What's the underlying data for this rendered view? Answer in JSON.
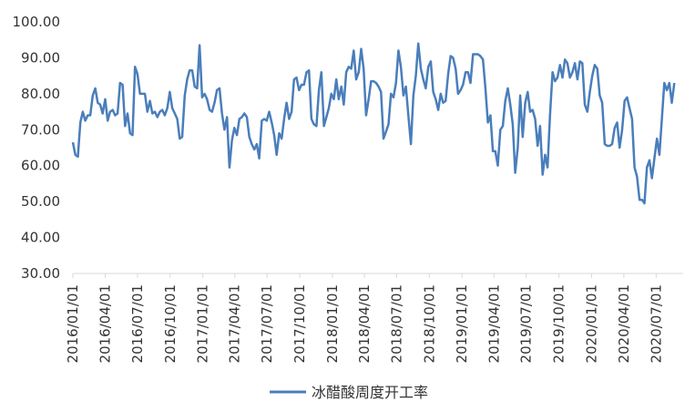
{
  "chart_data": {
    "type": "line",
    "title": "",
    "xlabel": "",
    "ylabel": "",
    "ylim": [
      30,
      100
    ],
    "y_ticks": [
      "30.00",
      "40.00",
      "50.00",
      "60.00",
      "70.00",
      "80.00",
      "90.00",
      "100.00"
    ],
    "x_ticks": [
      "2016/01/01",
      "2016/04/01",
      "2016/07/01",
      "2016/10/01",
      "2017/01/01",
      "2017/04/01",
      "2017/07/01",
      "2017/10/01",
      "2018/01/01",
      "2018/04/01",
      "2018/07/01",
      "2018/10/01",
      "2019/01/01",
      "2019/04/01",
      "2019/07/01",
      "2019/10/01",
      "2020/01/01",
      "2020/04/01",
      "2020/07/01"
    ],
    "x_range": [
      "2016/01/01",
      "2020/09/15"
    ],
    "grid": false,
    "legend_position": "bottom",
    "series": [
      {
        "name": "冰醋酸周度开工率",
        "color": "#4a7ebb",
        "points": [
          [
            "2016-01-01",
            66.5
          ],
          [
            "2016-01-08",
            63.0
          ],
          [
            "2016-01-15",
            62.5
          ],
          [
            "2016-01-22",
            72.0
          ],
          [
            "2016-01-29",
            75.0
          ],
          [
            "2016-02-05",
            72.5
          ],
          [
            "2016-02-12",
            74.0
          ],
          [
            "2016-02-19",
            74.0
          ],
          [
            "2016-02-26",
            79.5
          ],
          [
            "2016-03-04",
            81.5
          ],
          [
            "2016-03-11",
            77.5
          ],
          [
            "2016-03-18",
            77.0
          ],
          [
            "2016-03-25",
            74.5
          ],
          [
            "2016-04-01",
            78.5
          ],
          [
            "2016-04-08",
            72.5
          ],
          [
            "2016-04-15",
            75.0
          ],
          [
            "2016-04-22",
            75.5
          ],
          [
            "2016-04-29",
            74.0
          ],
          [
            "2016-05-06",
            74.5
          ],
          [
            "2016-05-13",
            83.0
          ],
          [
            "2016-05-20",
            82.5
          ],
          [
            "2016-05-27",
            71.0
          ],
          [
            "2016-06-03",
            74.5
          ],
          [
            "2016-06-10",
            69.0
          ],
          [
            "2016-06-17",
            68.5
          ],
          [
            "2016-06-24",
            87.5
          ],
          [
            "2016-07-01",
            85.5
          ],
          [
            "2016-07-08",
            80.0
          ],
          [
            "2016-07-15",
            80.0
          ],
          [
            "2016-07-22",
            80.0
          ],
          [
            "2016-07-29",
            75.0
          ],
          [
            "2016-08-05",
            78.0
          ],
          [
            "2016-08-12",
            74.5
          ],
          [
            "2016-08-19",
            75.0
          ],
          [
            "2016-08-26",
            73.5
          ],
          [
            "2016-09-02",
            75.0
          ],
          [
            "2016-09-09",
            75.5
          ],
          [
            "2016-09-16",
            74.0
          ],
          [
            "2016-09-23",
            76.0
          ],
          [
            "2016-09-30",
            80.5
          ],
          [
            "2016-10-07",
            76.0
          ],
          [
            "2016-10-14",
            74.5
          ],
          [
            "2016-10-21",
            73.0
          ],
          [
            "2016-10-28",
            67.5
          ],
          [
            "2016-11-04",
            68.0
          ],
          [
            "2016-11-11",
            79.5
          ],
          [
            "2016-11-18",
            84.0
          ],
          [
            "2016-11-25",
            86.5
          ],
          [
            "2016-12-02",
            86.5
          ],
          [
            "2016-12-09",
            82.0
          ],
          [
            "2016-12-16",
            81.5
          ],
          [
            "2016-12-23",
            93.5
          ],
          [
            "2016-12-30",
            79.0
          ],
          [
            "2017-01-06",
            80.0
          ],
          [
            "2017-01-13",
            78.5
          ],
          [
            "2017-01-20",
            75.5
          ],
          [
            "2017-01-27",
            75.0
          ],
          [
            "2017-02-03",
            77.5
          ],
          [
            "2017-02-10",
            81.0
          ],
          [
            "2017-02-17",
            81.5
          ],
          [
            "2017-02-24",
            74.5
          ],
          [
            "2017-03-03",
            70.0
          ],
          [
            "2017-03-10",
            73.5
          ],
          [
            "2017-03-17",
            59.5
          ],
          [
            "2017-03-24",
            67.0
          ],
          [
            "2017-03-31",
            70.5
          ],
          [
            "2017-04-07",
            68.5
          ],
          [
            "2017-04-14",
            73.0
          ],
          [
            "2017-04-21",
            73.5
          ],
          [
            "2017-04-28",
            74.5
          ],
          [
            "2017-05-05",
            73.5
          ],
          [
            "2017-05-12",
            68.0
          ],
          [
            "2017-05-19",
            66.0
          ],
          [
            "2017-05-26",
            64.5
          ],
          [
            "2017-06-02",
            66.0
          ],
          [
            "2017-06-09",
            62.0
          ],
          [
            "2017-06-16",
            72.5
          ],
          [
            "2017-06-23",
            73.0
          ],
          [
            "2017-06-30",
            72.5
          ],
          [
            "2017-07-07",
            75.0
          ],
          [
            "2017-07-14",
            72.0
          ],
          [
            "2017-07-21",
            68.5
          ],
          [
            "2017-07-28",
            63.0
          ],
          [
            "2017-08-04",
            69.0
          ],
          [
            "2017-08-11",
            67.5
          ],
          [
            "2017-08-18",
            73.0
          ],
          [
            "2017-08-25",
            77.5
          ],
          [
            "2017-09-01",
            73.0
          ],
          [
            "2017-09-08",
            75.0
          ],
          [
            "2017-09-15",
            84.0
          ],
          [
            "2017-09-22",
            84.5
          ],
          [
            "2017-09-29",
            81.0
          ],
          [
            "2017-10-06",
            82.5
          ],
          [
            "2017-10-13",
            82.5
          ],
          [
            "2017-10-20",
            86.0
          ],
          [
            "2017-10-27",
            86.5
          ],
          [
            "2017-11-03",
            73.0
          ],
          [
            "2017-11-10",
            71.5
          ],
          [
            "2017-11-17",
            71.0
          ],
          [
            "2017-11-24",
            81.0
          ],
          [
            "2017-12-01",
            86.0
          ],
          [
            "2017-12-08",
            71.0
          ],
          [
            "2017-12-15",
            73.5
          ],
          [
            "2017-12-22",
            76.0
          ],
          [
            "2017-12-29",
            80.0
          ],
          [
            "2018-01-05",
            78.5
          ],
          [
            "2018-01-12",
            84.0
          ],
          [
            "2018-01-19",
            78.5
          ],
          [
            "2018-01-26",
            82.0
          ],
          [
            "2018-02-02",
            77.0
          ],
          [
            "2018-02-09",
            86.0
          ],
          [
            "2018-02-16",
            87.5
          ],
          [
            "2018-02-23",
            87.0
          ],
          [
            "2018-03-02",
            92.0
          ],
          [
            "2018-03-09",
            84.0
          ],
          [
            "2018-03-16",
            86.0
          ],
          [
            "2018-03-23",
            92.5
          ],
          [
            "2018-03-30",
            87.0
          ],
          [
            "2018-04-06",
            74.0
          ],
          [
            "2018-04-13",
            78.5
          ],
          [
            "2018-04-20",
            83.5
          ],
          [
            "2018-04-27",
            83.5
          ],
          [
            "2018-05-04",
            83.0
          ],
          [
            "2018-05-11",
            82.0
          ],
          [
            "2018-05-18",
            80.5
          ],
          [
            "2018-05-25",
            67.5
          ],
          [
            "2018-06-01",
            69.5
          ],
          [
            "2018-06-08",
            71.5
          ],
          [
            "2018-06-15",
            80.0
          ],
          [
            "2018-06-22",
            79.0
          ],
          [
            "2018-06-29",
            83.0
          ],
          [
            "2018-07-06",
            92.0
          ],
          [
            "2018-07-13",
            87.5
          ],
          [
            "2018-07-20",
            79.5
          ],
          [
            "2018-07-27",
            82.0
          ],
          [
            "2018-08-03",
            74.0
          ],
          [
            "2018-08-10",
            66.0
          ],
          [
            "2018-08-17",
            79.5
          ],
          [
            "2018-08-24",
            85.0
          ],
          [
            "2018-08-31",
            94.0
          ],
          [
            "2018-09-07",
            87.0
          ],
          [
            "2018-09-14",
            84.0
          ],
          [
            "2018-09-21",
            81.5
          ],
          [
            "2018-09-28",
            87.5
          ],
          [
            "2018-10-05",
            89.0
          ],
          [
            "2018-10-12",
            80.5
          ],
          [
            "2018-10-19",
            78.5
          ],
          [
            "2018-10-26",
            75.5
          ],
          [
            "2018-11-02",
            80.0
          ],
          [
            "2018-11-09",
            77.5
          ],
          [
            "2018-11-16",
            78.0
          ],
          [
            "2018-11-23",
            85.5
          ],
          [
            "2018-11-30",
            90.5
          ],
          [
            "2018-12-07",
            90.0
          ],
          [
            "2018-12-14",
            87.0
          ],
          [
            "2018-12-21",
            80.0
          ],
          [
            "2018-12-28",
            81.0
          ],
          [
            "2019-01-04",
            82.5
          ],
          [
            "2019-01-11",
            86.0
          ],
          [
            "2019-01-18",
            86.0
          ],
          [
            "2019-01-25",
            83.0
          ],
          [
            "2019-02-01",
            91.0
          ],
          [
            "2019-02-08",
            91.0
          ],
          [
            "2019-02-15",
            91.0
          ],
          [
            "2019-02-22",
            90.5
          ],
          [
            "2019-03-01",
            89.5
          ],
          [
            "2019-03-08",
            81.5
          ],
          [
            "2019-03-15",
            72.0
          ],
          [
            "2019-03-22",
            74.0
          ],
          [
            "2019-03-29",
            64.0
          ],
          [
            "2019-04-05",
            64.0
          ],
          [
            "2019-04-12",
            60.0
          ],
          [
            "2019-04-19",
            70.0
          ],
          [
            "2019-04-26",
            71.0
          ],
          [
            "2019-05-03",
            78.0
          ],
          [
            "2019-05-10",
            81.5
          ],
          [
            "2019-05-17",
            77.0
          ],
          [
            "2019-05-24",
            71.5
          ],
          [
            "2019-05-31",
            58.0
          ],
          [
            "2019-06-07",
            65.0
          ],
          [
            "2019-06-14",
            79.5
          ],
          [
            "2019-06-21",
            68.0
          ],
          [
            "2019-06-28",
            77.5
          ],
          [
            "2019-07-05",
            80.5
          ],
          [
            "2019-07-12",
            75.0
          ],
          [
            "2019-07-19",
            75.5
          ],
          [
            "2019-07-26",
            73.0
          ],
          [
            "2019-08-02",
            65.5
          ],
          [
            "2019-08-09",
            71.0
          ],
          [
            "2019-08-16",
            57.5
          ],
          [
            "2019-08-23",
            63.0
          ],
          [
            "2019-08-30",
            59.5
          ],
          [
            "2019-09-06",
            74.0
          ],
          [
            "2019-09-13",
            86.0
          ],
          [
            "2019-09-20",
            83.5
          ],
          [
            "2019-09-27",
            84.5
          ],
          [
            "2019-10-04",
            88.0
          ],
          [
            "2019-10-11",
            84.5
          ],
          [
            "2019-10-18",
            89.5
          ],
          [
            "2019-10-25",
            88.5
          ],
          [
            "2019-11-01",
            84.5
          ],
          [
            "2019-11-08",
            86.0
          ],
          [
            "2019-11-15",
            88.5
          ],
          [
            "2019-11-22",
            84.0
          ],
          [
            "2019-11-29",
            89.0
          ],
          [
            "2019-12-06",
            88.5
          ],
          [
            "2019-12-13",
            77.0
          ],
          [
            "2019-12-20",
            75.0
          ],
          [
            "2019-12-27",
            80.5
          ],
          [
            "2020-01-03",
            85.0
          ],
          [
            "2020-01-10",
            88.0
          ],
          [
            "2020-01-17",
            87.0
          ],
          [
            "2020-01-24",
            79.5
          ],
          [
            "2020-01-31",
            77.5
          ],
          [
            "2020-02-07",
            66.0
          ],
          [
            "2020-02-14",
            65.5
          ],
          [
            "2020-02-21",
            65.5
          ],
          [
            "2020-02-28",
            66.0
          ],
          [
            "2020-03-06",
            70.5
          ],
          [
            "2020-03-13",
            72.0
          ],
          [
            "2020-03-20",
            65.0
          ],
          [
            "2020-03-27",
            70.0
          ],
          [
            "2020-04-03",
            78.0
          ],
          [
            "2020-04-10",
            79.0
          ],
          [
            "2020-04-17",
            76.0
          ],
          [
            "2020-04-24",
            73.0
          ],
          [
            "2020-05-01",
            59.5
          ],
          [
            "2020-05-08",
            57.0
          ],
          [
            "2020-05-15",
            50.5
          ],
          [
            "2020-05-22",
            50.5
          ],
          [
            "2020-05-29",
            49.5
          ],
          [
            "2020-06-05",
            59.5
          ],
          [
            "2020-06-12",
            61.5
          ],
          [
            "2020-06-19",
            56.5
          ],
          [
            "2020-06-26",
            62.0
          ],
          [
            "2020-07-03",
            67.5
          ],
          [
            "2020-07-10",
            63.0
          ],
          [
            "2020-07-17",
            73.0
          ],
          [
            "2020-07-24",
            83.0
          ],
          [
            "2020-07-31",
            81.0
          ],
          [
            "2020-08-07",
            83.0
          ],
          [
            "2020-08-14",
            77.5
          ],
          [
            "2020-08-21",
            83.0
          ]
        ]
      }
    ]
  }
}
